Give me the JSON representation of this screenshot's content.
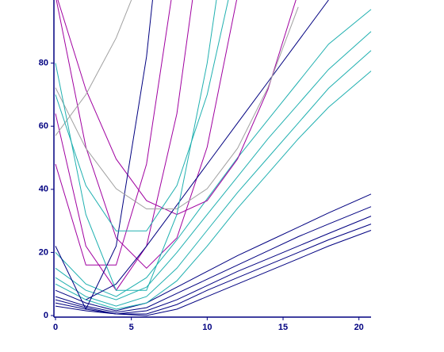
{
  "chart_data": {
    "type": "line",
    "xlim": [
      0,
      20.8
    ],
    "ylim": [
      0,
      100
    ],
    "xticks": [
      0,
      5,
      10,
      15,
      20
    ],
    "yticks": [
      0,
      20,
      40,
      60,
      80
    ],
    "axis_color": "#000080",
    "series": [
      {
        "color": "#000080",
        "x": [
          0,
          2,
          4,
          6,
          8,
          10,
          12,
          14,
          16,
          18,
          20.8
        ],
        "values": [
          8,
          4,
          1.5,
          4,
          9,
          14,
          19,
          23.5,
          28,
          32.5,
          38.5
        ]
      },
      {
        "color": "#000080",
        "x": [
          0,
          2,
          4,
          6,
          8,
          10,
          12,
          14,
          16,
          18,
          20.8
        ],
        "values": [
          6,
          3,
          1,
          2.5,
          7,
          11.5,
          16,
          20.5,
          25,
          29,
          34.5
        ]
      },
      {
        "color": "#000080",
        "x": [
          0,
          2,
          4,
          6,
          8,
          10,
          12,
          14,
          16,
          18,
          20.8
        ],
        "values": [
          5,
          2.5,
          0.5,
          1.5,
          5,
          9.5,
          14,
          18,
          22,
          26,
          31.5
        ]
      },
      {
        "color": "#000080",
        "x": [
          0,
          2,
          4,
          6,
          8,
          10,
          12,
          14,
          16,
          18,
          20.8
        ],
        "values": [
          4,
          2,
          0.5,
          0.5,
          3.5,
          8,
          12,
          16,
          20,
          24,
          29
        ]
      },
      {
        "color": "#000080",
        "x": [
          0,
          2,
          4,
          6,
          8,
          10,
          12,
          14,
          16,
          18,
          20.8
        ],
        "values": [
          3,
          1.5,
          0.5,
          0,
          2,
          6,
          10,
          14,
          18,
          22,
          27
        ]
      },
      {
        "color": "#20b0b0",
        "x": [
          0,
          2,
          4,
          6,
          8,
          10,
          12,
          14,
          16,
          18,
          20.8
        ],
        "values": [
          20,
          10,
          6,
          12,
          24,
          37,
          50,
          62,
          74,
          86,
          97
        ]
      },
      {
        "color": "#20b0b0",
        "x": [
          0,
          2,
          4,
          6,
          8,
          10,
          12,
          14,
          16,
          18,
          20.8
        ],
        "values": [
          15,
          8,
          5,
          9,
          20,
          32,
          44,
          56,
          67,
          78,
          90
        ]
      },
      {
        "color": "#20b0b0",
        "x": [
          0,
          2,
          4,
          6,
          8,
          10,
          12,
          14,
          16,
          18,
          20.8
        ],
        "values": [
          12,
          6,
          3,
          6,
          15,
          27,
          39,
          50,
          61,
          72,
          84
        ]
      },
      {
        "color": "#20b0b0",
        "x": [
          0,
          2,
          4,
          6,
          8,
          10,
          12,
          14,
          16,
          18,
          20.8
        ],
        "values": [
          10,
          5,
          2,
          4,
          11,
          22,
          34,
          45,
          56,
          66,
          77.5
        ]
      },
      {
        "color": "#a000a0",
        "x": [
          0,
          2,
          4,
          6,
          8,
          10,
          12
        ],
        "values": [
          101.4,
          53.4,
          24.6,
          15,
          24.6,
          53.4,
          101.4
        ]
      },
      {
        "color": "#a000a0",
        "x": [
          0,
          2,
          4,
          6,
          8,
          10,
          12,
          14,
          16
        ],
        "values": [
          102.4,
          71.6,
          49.6,
          36.4,
          32,
          36.4,
          49.6,
          71.6,
          102.4
        ]
      },
      {
        "color": "#a000a0",
        "x": [
          0,
          2,
          4,
          6,
          8
        ],
        "values": [
          48,
          16,
          16,
          48,
          112
        ]
      },
      {
        "color": "#a000a0",
        "x": [
          0,
          2,
          4,
          6,
          8,
          10
        ],
        "values": [
          64,
          22,
          8,
          22,
          64,
          134
        ]
      },
      {
        "color": "#000080",
        "x": [
          2,
          4,
          6,
          8,
          10,
          12,
          14,
          16,
          18
        ],
        "values": [
          5,
          10,
          22,
          35,
          48,
          61,
          74,
          87,
          100
        ]
      },
      {
        "color": "#000080",
        "x": [
          0,
          2,
          4,
          6,
          7
        ],
        "values": [
          22,
          2,
          22,
          82,
          127
        ]
      },
      {
        "color": "#a0a0a0",
        "x": [
          0,
          2,
          4,
          5
        ],
        "values": [
          57,
          70,
          88,
          100
        ]
      },
      {
        "color": "#a0a0a0",
        "x": [
          0,
          2,
          4,
          6,
          8,
          10,
          12,
          14,
          16
        ],
        "values": [
          72.2,
          53,
          40.2,
          33.8,
          33.8,
          40.2,
          53,
          72.2,
          97.8
        ]
      },
      {
        "color": "#20b0b0",
        "x": [
          0,
          2,
          4,
          6,
          8,
          10,
          11
        ],
        "values": [
          80,
          32,
          8,
          8,
          32,
          80,
          113
        ]
      },
      {
        "color": "#20b0b0",
        "x": [
          0,
          2,
          4,
          6,
          8,
          10,
          12
        ],
        "values": [
          70,
          41.2,
          26.8,
          26.8,
          41.2,
          70,
          113.2
        ]
      }
    ]
  }
}
